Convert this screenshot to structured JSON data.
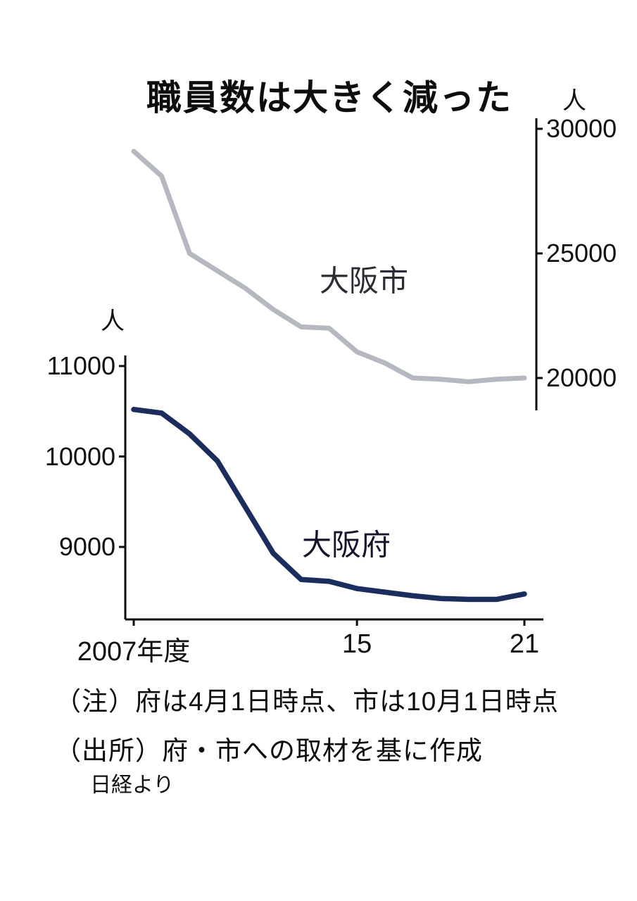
{
  "chart_data": {
    "type": "line",
    "title": "職員数は大きく減った",
    "x_years": [
      2007,
      2008,
      2009,
      2010,
      2011,
      2012,
      2013,
      2014,
      2015,
      2016,
      2017,
      2018,
      2019,
      2020,
      2021
    ],
    "x_ticks": [
      {
        "year": 2007,
        "label": "2007年度"
      },
      {
        "year": 2015,
        "label": "15"
      },
      {
        "year": 2021,
        "label": "21"
      }
    ],
    "left_axis": {
      "unit": "人",
      "ticks": [
        11000,
        10000,
        9000
      ],
      "min": 8200,
      "max": 11100
    },
    "right_axis": {
      "unit": "人",
      "ticks": [
        30000,
        25000,
        20000
      ],
      "min": 18700,
      "max": 30400
    },
    "grid": false,
    "legend_position": "inline-labels",
    "series": [
      {
        "name": "大阪市",
        "axis": "right",
        "color": "#b5b7c1",
        "stroke_width": 7,
        "values": [
          29100,
          28100,
          25000,
          24300,
          23600,
          22750,
          22050,
          22000,
          21050,
          20600,
          20000,
          19950,
          19850,
          19950,
          20000
        ]
      },
      {
        "name": "大阪府",
        "axis": "left",
        "color": "#1b2d5c",
        "stroke_width": 7.5,
        "values": [
          10520,
          10480,
          10250,
          9950,
          9440,
          8930,
          8640,
          8620,
          8540,
          8500,
          8460,
          8430,
          8420,
          8420,
          8480
        ]
      }
    ]
  },
  "notes": {
    "line1": "（注）府は4月1日時点、市は10月1日時点",
    "line2": "（出所）府・市への取材を基に作成"
  },
  "credit": "日経より",
  "axis_color": "#0d0d0d"
}
